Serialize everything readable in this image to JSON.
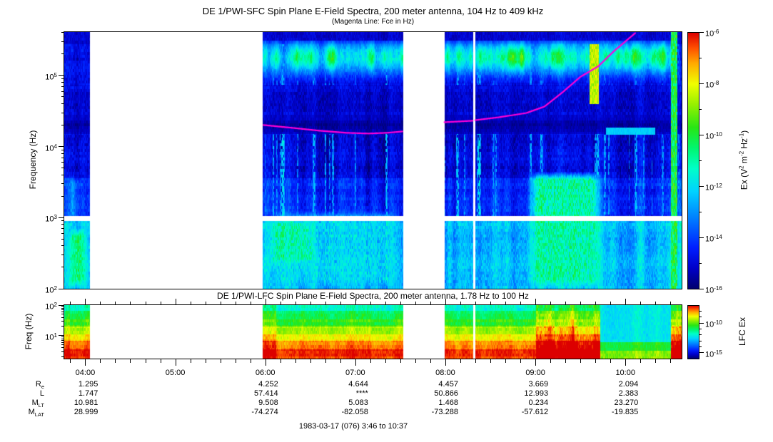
{
  "colormap_stops": [
    [
      0,
      [
        0,
        0,
        110
      ]
    ],
    [
      0.08,
      [
        0,
        0,
        200
      ]
    ],
    [
      0.16,
      [
        0,
        30,
        255
      ]
    ],
    [
      0.28,
      [
        0,
        130,
        255
      ]
    ],
    [
      0.38,
      [
        0,
        210,
        255
      ]
    ],
    [
      0.47,
      [
        0,
        255,
        200
      ]
    ],
    [
      0.55,
      [
        0,
        245,
        110
      ]
    ],
    [
      0.63,
      [
        40,
        230,
        20
      ]
    ],
    [
      0.72,
      [
        150,
        240,
        0
      ]
    ],
    [
      0.8,
      [
        240,
        255,
        0
      ]
    ],
    [
      0.88,
      [
        255,
        170,
        0
      ]
    ],
    [
      0.94,
      [
        255,
        80,
        0
      ]
    ],
    [
      1,
      [
        220,
        0,
        0
      ]
    ]
  ],
  "chart_data": [
    {
      "id": "sfc",
      "type": "heatmap",
      "title": "DE 1/PWI-SFC  Spin Plane E-Field Spectra, 200 meter antenna, 104 Hz to 409 kHz",
      "subtitle": "(Magenta Line: Fce in Hz)",
      "ylabel": "Frequency (Hz)",
      "yscale": "log",
      "ylim_hz": [
        100,
        409000
      ],
      "ytick_exponents": [
        5,
        4,
        3,
        2
      ],
      "xlim_hours": [
        3.7667,
        10.6167
      ],
      "xtick_hours": [
        4,
        5,
        6,
        7,
        8,
        9,
        10
      ],
      "xtick_labels": [
        "04:00",
        "05:00",
        "06:00",
        "07:00",
        "08:00",
        "09:00",
        "10:00"
      ],
      "time_span_label": "3:46 to 10:37",
      "data_gaps_hours": [
        [
          4.045,
          5.967
        ],
        [
          7.528,
          7.988
        ],
        [
          8.304,
          8.333
        ]
      ],
      "white_band_logf": [
        2.95,
        3.02
      ],
      "seed": 11,
      "colorbar": {
        "label_plain": "Ex (V2 m-2 Hz-1)",
        "label_parts": [
          {
            "t": "Ex (V"
          },
          {
            "t": "2",
            "sup": true
          },
          {
            "t": " m"
          },
          {
            "t": "-2",
            "sup": true
          },
          {
            "t": " Hz"
          },
          {
            "t": "-1",
            "sup": true
          },
          {
            "t": ")"
          }
        ],
        "tick_exponents": [
          -6,
          -8,
          -10,
          -12,
          -14,
          -16
        ],
        "minor_tick_exponents": [
          -7,
          -9,
          -11,
          -13,
          -15
        ],
        "range_exponents": [
          -6,
          -16
        ]
      },
      "fce_line": {
        "color": "#ff00d7",
        "points_hour_logf": [
          [
            5.98,
            4.3
          ],
          [
            6.3,
            4.26
          ],
          [
            6.6,
            4.22
          ],
          [
            6.9,
            4.19
          ],
          [
            7.15,
            4.18
          ],
          [
            7.35,
            4.19
          ],
          [
            7.53,
            4.21
          ],
          [
            7.99,
            4.34
          ],
          [
            8.15,
            4.35
          ],
          [
            8.3,
            4.36
          ],
          [
            8.34,
            4.37
          ],
          [
            8.6,
            4.41
          ],
          [
            8.9,
            4.47
          ],
          [
            9.1,
            4.56
          ],
          [
            9.3,
            4.76
          ],
          [
            9.5,
            4.98
          ],
          [
            9.7,
            5.13
          ],
          [
            9.87,
            5.34
          ],
          [
            10.0,
            5.48
          ],
          [
            10.13,
            5.62
          ]
        ]
      },
      "bands": [
        {
          "lf": [
            5.45,
            5.62
          ],
          "level": -15.2,
          "streak": 0.25,
          "speckle": 0.35
        },
        {
          "lf": [
            4.87,
            5.45
          ],
          "level": -14.85,
          "streak": 0.5,
          "speckle": 0.5
        },
        {
          "lf": [
            4.45,
            4.87
          ],
          "level": -15.05,
          "streak": 0.4,
          "speckle": 0.45
        },
        {
          "lf": [
            4.18,
            4.45
          ],
          "level": -15.35,
          "streak": 0.25,
          "speckle": 0.3
        },
        {
          "lf": [
            3.55,
            4.18
          ],
          "level": -14.95,
          "streak": 0.7,
          "speckle": 0.5
        },
        {
          "lf": [
            3.02,
            3.55
          ],
          "level": -14.35,
          "streak": 0.8,
          "speckle": 0.5
        },
        {
          "lf": [
            2.0,
            2.95
          ],
          "level": -12.5,
          "streak": 0.9,
          "speckle": 0.6
        }
      ],
      "features": [
        {
          "kind": "patch",
          "t": [
            3.766,
            4.05
          ],
          "lf": [
            2.0,
            2.85
          ],
          "level": -10.6,
          "noise": 1.6
        },
        {
          "kind": "patch",
          "t": [
            3.766,
            3.95
          ],
          "lf": [
            2.85,
            3.6
          ],
          "level": -12.6,
          "noise": 1.6
        },
        {
          "kind": "blobs",
          "t": [
            5.96,
            7.53
          ],
          "lf": [
            4.9,
            5.5
          ],
          "level": -11.8,
          "noise": 2.2
        },
        {
          "kind": "blobs",
          "t": [
            7.98,
            10.5
          ],
          "lf": [
            4.9,
            5.5
          ],
          "level": -11.4,
          "noise": 2.2
        },
        {
          "kind": "patch",
          "t": [
            6.0,
            6.6
          ],
          "lf": [
            2.3,
            3.02
          ],
          "level": -11.2,
          "noise": 2.0
        },
        {
          "kind": "patch",
          "t": [
            6.05,
            7.5
          ],
          "lf": [
            2.0,
            3.1
          ],
          "level": -12.2,
          "noise": 1.8
        },
        {
          "kind": "patch",
          "t": [
            8.9,
            9.75
          ],
          "lf": [
            2.0,
            3.65
          ],
          "level": -11.0,
          "noise": 2.0
        },
        {
          "kind": "streaks",
          "t": [
            5.96,
            10.62
          ],
          "lf": [
            2.95,
            4.18
          ],
          "level": -12.8,
          "noise": 1.5
        },
        {
          "kind": "streaks",
          "t": [
            5.96,
            10.62
          ],
          "lf": [
            4.87,
            5.45
          ],
          "level": -13.4,
          "noise": 1.2
        },
        {
          "kind": "strip",
          "t": [
            9.6,
            9.7
          ],
          "lf": [
            4.6,
            5.45
          ],
          "level": -8.4,
          "noise": 1.5
        },
        {
          "kind": "strip",
          "t": [
            10.5,
            10.57
          ],
          "lf": [
            2.0,
            5.62
          ],
          "level": -10.2,
          "noise": 2.2
        },
        {
          "kind": "strip",
          "t": [
            9.78,
            10.33
          ],
          "lf": [
            4.17,
            4.27
          ],
          "level": -12.2,
          "noise": 0.6
        }
      ]
    },
    {
      "id": "lfc",
      "type": "heatmap",
      "title": "DE 1/PWI-LFC  Spin Plane E-Field Spectra, 200 meter antenna, 1.78 Hz to 100 Hz",
      "ylabel": "Freq (Hz)",
      "yscale": "log",
      "ylim_hz": [
        1.78,
        100
      ],
      "ytick_exponents": [
        2,
        1
      ],
      "xlim_hours": [
        3.7667,
        10.6167
      ],
      "xtick_hours": [
        4,
        5,
        6,
        7,
        8,
        9,
        10
      ],
      "xtick_labels": [
        "04:00",
        "05:00",
        "06:00",
        "07:00",
        "08:00",
        "09:00",
        "10:00"
      ],
      "data_gaps_hours": [
        [
          4.045,
          5.967
        ],
        [
          7.528,
          7.988
        ],
        [
          8.304,
          8.333
        ]
      ],
      "seed": 23,
      "colorbar": {
        "label_plain": "LFC Ex",
        "tick_exponents": [
          -10,
          -15
        ],
        "minor_tick_exponents": [
          -8,
          -9,
          -11,
          -12,
          -13,
          -14
        ],
        "range_exponents": [
          -7,
          -16
        ]
      },
      "bands": [
        {
          "lf": [
            1.82,
            2.01
          ],
          "level": -11.7,
          "streak": 0.5,
          "speckle": 0.45
        },
        {
          "lf": [
            1.55,
            1.82
          ],
          "level": -10.9,
          "streak": 0.5,
          "speckle": 0.4
        },
        {
          "lf": [
            1.3,
            1.55
          ],
          "level": -10.3,
          "streak": 0.5,
          "speckle": 0.4
        },
        {
          "lf": [
            1.05,
            1.3
          ],
          "level": -9.4,
          "streak": 0.45,
          "speckle": 0.35
        },
        {
          "lf": [
            0.82,
            1.05
          ],
          "level": -8.7,
          "streak": 0.4,
          "speckle": 0.35
        },
        {
          "lf": [
            0.55,
            0.82
          ],
          "level": -8.0,
          "streak": 0.4,
          "speckle": 0.3
        },
        {
          "lf": [
            0.2,
            0.55
          ],
          "level": -7.4,
          "streak": 0.35,
          "speckle": 0.3
        }
      ],
      "features": [
        {
          "kind": "boost",
          "t": [
            3.766,
            3.83
          ],
          "lf": [
            0.2,
            2.01
          ],
          "level": 0.9,
          "noise": 0.6
        },
        {
          "kind": "boost",
          "t": [
            5.97,
            6.12
          ],
          "lf": [
            0.2,
            2.01
          ],
          "level": 0.7,
          "noise": 0.6
        },
        {
          "kind": "boost",
          "t": [
            9.0,
            9.72
          ],
          "lf": [
            0.2,
            2.01
          ],
          "level": 1.4,
          "noise": 0.8
        },
        {
          "kind": "override",
          "t": [
            9.72,
            10.5
          ],
          "lf": [
            0.78,
            2.01
          ],
          "level": -12.3,
          "noise": 0.7
        },
        {
          "kind": "override",
          "t": [
            9.72,
            10.5
          ],
          "lf": [
            0.5,
            0.78
          ],
          "level": -10.6,
          "noise": 0.6
        },
        {
          "kind": "override",
          "t": [
            9.72,
            10.5
          ],
          "lf": [
            0.2,
            0.5
          ],
          "level": -9.7,
          "noise": 0.8
        },
        {
          "kind": "boost",
          "t": [
            10.5,
            10.62
          ],
          "lf": [
            0.2,
            2.01
          ],
          "level": 1.5,
          "noise": 0.6
        }
      ]
    }
  ],
  "ephemeris": {
    "row_labels": [
      {
        "main": "R",
        "sub": "e"
      },
      {
        "main": "L",
        "sub": ""
      },
      {
        "main": "M",
        "sub": "LT"
      },
      {
        "main": "M",
        "sub": "LAT"
      }
    ],
    "columns": [
      "04:00",
      "05:00",
      "06:00",
      "07:00",
      "08:00",
      "09:00",
      "10:00"
    ],
    "rows": [
      [
        "1.295",
        "",
        "4.252",
        "4.644",
        "4.457",
        "3.669",
        "2.094"
      ],
      [
        "1.747",
        "",
        "57.414",
        "****",
        "50.866",
        "12.993",
        "2.383"
      ],
      [
        "10.981",
        "",
        "9.508",
        "5.083",
        "1.468",
        "0.234",
        "23.270"
      ],
      [
        "28.999",
        "",
        "-74.274",
        "-82.058",
        "-73.288",
        "-57.612",
        "-19.835"
      ]
    ]
  },
  "footer_caption": "1983-03-17 (076) 3:46 to 10:37"
}
